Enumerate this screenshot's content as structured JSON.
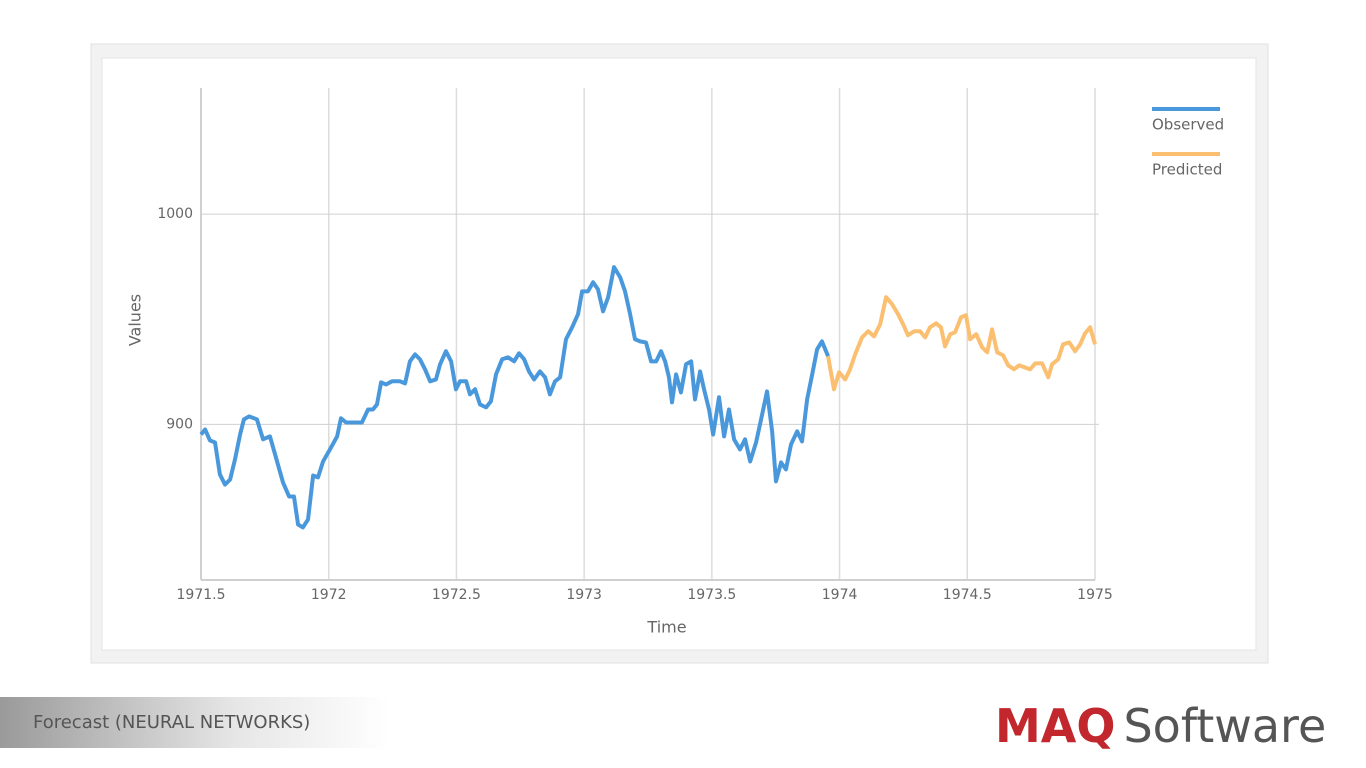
{
  "chart_data": {
    "type": "line",
    "x_label": "Time",
    "y_label": "Values",
    "xlim": [
      1971.5,
      1975
    ],
    "xticks": [
      1971.5,
      1972,
      1972.5,
      1973,
      1973.5,
      1974,
      1974.5,
      1975
    ],
    "ylim": [
      826,
      1060
    ],
    "yticks": [
      900,
      1000
    ],
    "grid": true,
    "legend": "top-right",
    "series": [
      {
        "name": "Observed",
        "color": "#4a98dc",
        "x": [
          1971.5,
          1971.516,
          1971.535,
          1971.555,
          1971.574,
          1971.594,
          1971.614,
          1971.633,
          1971.653,
          1971.668,
          1971.688,
          1971.719,
          1971.743,
          1971.77,
          1971.79,
          1971.821,
          1971.845,
          1971.864,
          1971.88,
          1971.899,
          1971.919,
          1971.939,
          1971.958,
          1971.978,
          1972.005,
          1972.033,
          1972.048,
          1972.068,
          1972.103,
          1972.13,
          1972.154,
          1972.173,
          1972.189,
          1972.205,
          1972.224,
          1972.248,
          1972.279,
          1972.299,
          1972.318,
          1972.338,
          1972.357,
          1972.377,
          1972.397,
          1972.42,
          1972.436,
          1972.459,
          1972.479,
          1972.498,
          1972.514,
          1972.538,
          1972.553,
          1972.573,
          1972.592,
          1972.616,
          1972.635,
          1972.655,
          1972.679,
          1972.702,
          1972.726,
          1972.745,
          1972.765,
          1972.784,
          1972.804,
          1972.827,
          1972.847,
          1972.866,
          1972.886,
          1972.906,
          1972.929,
          1972.953,
          1972.976,
          1972.992,
          1973.015,
          1973.035,
          1973.054,
          1973.074,
          1973.094,
          1973.117,
          1973.141,
          1973.16,
          1973.18,
          1973.199,
          1973.219,
          1973.242,
          1973.262,
          1973.282,
          1973.301,
          1973.317,
          1973.332,
          1973.344,
          1973.36,
          1973.379,
          1973.399,
          1973.419,
          1973.434,
          1973.454,
          1973.469,
          1973.489,
          1973.505,
          1973.528,
          1973.548,
          1973.567,
          1973.587,
          1973.61,
          1973.63,
          1973.65,
          1973.673,
          1973.697,
          1973.716,
          1973.736,
          1973.751,
          1973.771,
          1973.79,
          1973.81,
          1973.834,
          1973.853,
          1973.873,
          1973.892,
          1973.912,
          1973.931,
          1973.955
        ],
        "values": [
          895.2,
          897.6,
          892.4,
          891.4,
          876.2,
          871.4,
          873.8,
          883.3,
          895.2,
          902.4,
          903.8,
          902.4,
          892.9,
          894.3,
          885.7,
          872.4,
          865.7,
          865.7,
          852.4,
          851,
          854.8,
          875.7,
          874.8,
          882.4,
          888.1,
          894.3,
          902.9,
          900.9,
          900.9,
          900.9,
          907.1,
          907.1,
          909.5,
          920,
          919,
          920.5,
          920.5,
          919.5,
          930,
          933.3,
          931,
          926.2,
          920.5,
          921.4,
          928.6,
          934.8,
          930,
          916.7,
          920.5,
          920.5,
          914.3,
          916.7,
          909.5,
          908.1,
          911,
          923.8,
          931,
          931.9,
          930,
          933.8,
          931,
          925.2,
          921.4,
          925.2,
          922.4,
          914.3,
          920.5,
          922.4,
          940.5,
          946.2,
          952.4,
          963.3,
          963.3,
          967.6,
          964.3,
          953.8,
          960.5,
          974.8,
          970,
          963.3,
          952.4,
          940.5,
          939.5,
          939,
          930,
          930,
          934.8,
          930,
          922.4,
          910.5,
          923.8,
          915.2,
          928.6,
          930,
          911.9,
          925.2,
          916.9,
          907.1,
          895.2,
          912.9,
          894.3,
          907.1,
          892.9,
          888.1,
          892.9,
          882.4,
          891.4,
          904.8,
          915.7,
          896.7,
          872.9,
          881.9,
          878.6,
          890.5,
          896.7,
          891.9,
          911.9,
          923.3,
          935.7,
          939.5,
          932.4
        ]
      },
      {
        "name": "Predicted",
        "color": "#fbbf72",
        "x": [
          1973.955,
          1973.978,
          1973.998,
          1974.022,
          1974.041,
          1974.061,
          1974.088,
          1974.112,
          1974.135,
          1974.159,
          1974.182,
          1974.206,
          1974.229,
          1974.249,
          1974.268,
          1974.292,
          1974.315,
          1974.335,
          1974.354,
          1974.378,
          1974.397,
          1974.413,
          1974.433,
          1974.452,
          1974.476,
          1974.495,
          1974.511,
          1974.535,
          1974.558,
          1974.578,
          1974.597,
          1974.617,
          1974.64,
          1974.66,
          1974.683,
          1974.703,
          1974.726,
          1974.746,
          1974.766,
          1974.793,
          1974.817,
          1974.832,
          1974.856,
          1974.875,
          1974.899,
          1974.922,
          1974.942,
          1974.961,
          1974.981,
          1975
        ],
        "values": [
          932.4,
          916.7,
          924.8,
          921.4,
          926.2,
          933.3,
          941.4,
          944.3,
          941.9,
          947.6,
          960.5,
          957.1,
          952.4,
          947.6,
          942.4,
          944.3,
          944.3,
          941.4,
          946.2,
          948.1,
          946.2,
          937.1,
          942.9,
          943.8,
          951,
          951.9,
          940.5,
          942.9,
          936.7,
          934.3,
          945.2,
          934.3,
          932.9,
          928.1,
          926.2,
          928.1,
          927.1,
          926.2,
          929,
          929,
          922.4,
          928.6,
          931,
          938.1,
          939,
          934.8,
          938.1,
          943.3,
          946.2,
          938.1
        ]
      }
    ]
  },
  "footer": {
    "caption": "Forecast (NEURAL NETWORKS)",
    "brand_mark": "MAQ",
    "brand_name": "Software"
  }
}
